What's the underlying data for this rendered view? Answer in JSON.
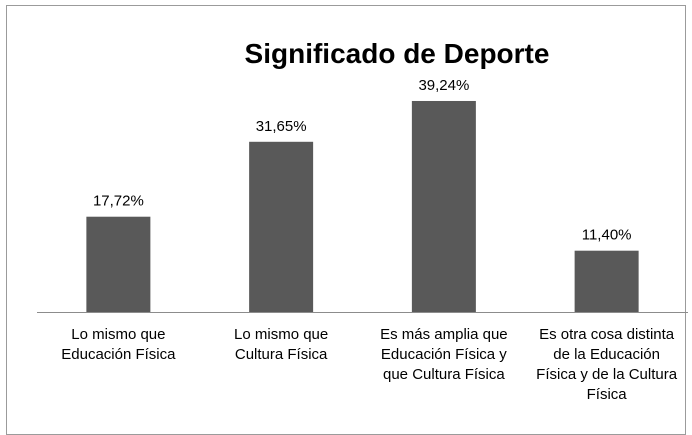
{
  "chart_data": {
    "type": "bar",
    "title": "Significado de Deporte",
    "categories": [
      [
        "Lo mismo que",
        "Educación Física"
      ],
      [
        "Lo mismo que",
        "Cultura Física"
      ],
      [
        "Es más amplia que",
        "Educación Física y",
        "que Cultura Física"
      ],
      [
        "Es otra cosa distinta",
        "de la Educación",
        "Física y de la Cultura",
        "Física"
      ]
    ],
    "values": [
      17.72,
      31.65,
      39.24,
      11.4
    ],
    "data_labels": [
      "17,72%",
      "31,65%",
      "39,24%",
      "11,40%"
    ],
    "ylim": [
      0,
      45
    ],
    "grid": false,
    "legend": "none",
    "bar_color": "#595959"
  }
}
